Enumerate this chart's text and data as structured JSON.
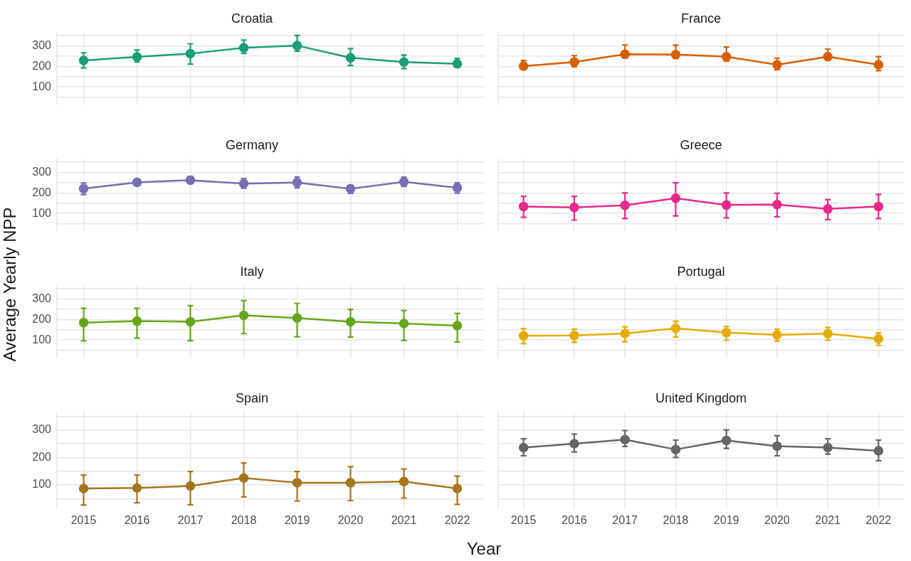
{
  "chart_data": [
    {
      "type": "line",
      "title": "Croatia",
      "categories": [
        "2015",
        "2016",
        "2017",
        "2018",
        "2019",
        "2020",
        "2021",
        "2022"
      ],
      "series": [
        {
          "color": "#1b9e77",
          "values": [
            229,
            246,
            262,
            290,
            301,
            242,
            221,
            212
          ],
          "errors": [
            [
              192,
              266
            ],
            [
              221,
              279
            ],
            [
              211,
              310
            ],
            [
              263,
              328
            ],
            [
              274,
              350
            ],
            [
              204,
              286
            ],
            [
              189,
              255
            ],
            [
              195,
              239
            ]
          ]
        }
      ],
      "ylim": [
        15,
        365
      ],
      "yticks": [
        {
          "value": 50,
          "label": null
        },
        100,
        {
          "value": 150,
          "label": null
        },
        200,
        {
          "value": 250,
          "label": null
        },
        300,
        {
          "value": 350,
          "label": null
        }
      ],
      "grid": true,
      "marker": "circle",
      "line_style": "solid",
      "tick_labels": "y"
    },
    {
      "type": "line",
      "title": "France",
      "categories": [
        "2015",
        "2016",
        "2017",
        "2018",
        "2019",
        "2020",
        "2021",
        "2022"
      ],
      "series": [
        {
          "color": "#d95f02",
          "values": [
            201,
            221,
            259,
            257,
            247,
            208,
            247,
            208
          ],
          "errors": [
            [
              190,
              228
            ],
            [
              198,
              252
            ],
            [
              240,
              304
            ],
            [
              239,
              303
            ],
            [
              226,
              294
            ],
            [
              183,
              240
            ],
            [
              230,
              284
            ],
            [
              179,
              247
            ]
          ]
        }
      ],
      "ylim": [
        15,
        365
      ],
      "yticks": [
        {
          "value": 50,
          "label": null
        },
        100,
        {
          "value": 150,
          "label": null
        },
        200,
        {
          "value": 250,
          "label": null
        },
        300,
        {
          "value": 350,
          "label": null
        }
      ],
      "grid": true,
      "marker": "circle",
      "line_style": "solid",
      "tick_labels": false
    },
    {
      "type": "line",
      "title": "Germany",
      "categories": [
        "2015",
        "2016",
        "2017",
        "2018",
        "2019",
        "2020",
        "2021",
        "2022"
      ],
      "series": [
        {
          "color": "#7570b3",
          "values": [
            221,
            251,
            262,
            245,
            250,
            220,
            254,
            225
          ],
          "errors": [
            [
              192,
              248
            ],
            [
              237,
              267
            ],
            [
              247,
              280
            ],
            [
              223,
              270
            ],
            [
              225,
              277
            ],
            [
              198,
              238
            ],
            [
              232,
              277
            ],
            [
              199,
              249
            ]
          ]
        }
      ],
      "ylim": [
        15,
        365
      ],
      "yticks": [
        {
          "value": 50,
          "label": null
        },
        100,
        {
          "value": 150,
          "label": null
        },
        200,
        {
          "value": 250,
          "label": null
        },
        300,
        {
          "value": 350,
          "label": null
        }
      ],
      "grid": true,
      "marker": "circle",
      "line_style": "solid",
      "tick_labels": "y"
    },
    {
      "type": "line",
      "title": "Greece",
      "categories": [
        "2015",
        "2016",
        "2017",
        "2018",
        "2019",
        "2020",
        "2021",
        "2022"
      ],
      "series": [
        {
          "color": "#e7298a",
          "values": [
            134,
            129,
            140,
            174,
            141,
            143,
            122,
            134
          ],
          "errors": [
            [
              81,
              183
            ],
            [
              68,
              183
            ],
            [
              75,
              200
            ],
            [
              88,
              249
            ],
            [
              79,
              200
            ],
            [
              84,
              198
            ],
            [
              70,
              167
            ],
            [
              75,
              193
            ]
          ]
        }
      ],
      "ylim": [
        15,
        365
      ],
      "yticks": [
        {
          "value": 50,
          "label": null
        },
        100,
        {
          "value": 150,
          "label": null
        },
        200,
        {
          "value": 250,
          "label": null
        },
        300,
        {
          "value": 350,
          "label": null
        }
      ],
      "grid": true,
      "marker": "circle",
      "line_style": "solid",
      "tick_labels": false
    },
    {
      "type": "line",
      "title": "Italy",
      "ylabel": "Average Yearly NPP",
      "categories": [
        "2015",
        "2016",
        "2017",
        "2018",
        "2019",
        "2020",
        "2021",
        "2022"
      ],
      "series": [
        {
          "color": "#66a61e",
          "values": [
            185,
            192,
            189,
            220,
            207,
            189,
            180,
            170
          ],
          "errors": [
            [
              96,
              254
            ],
            [
              110,
              254
            ],
            [
              97,
              267
            ],
            [
              131,
              292
            ],
            [
              116,
              278
            ],
            [
              114,
              249
            ],
            [
              98,
              244
            ],
            [
              91,
              229
            ]
          ]
        }
      ],
      "ylim": [
        15,
        365
      ],
      "yticks": [
        {
          "value": 50,
          "label": null
        },
        100,
        {
          "value": 150,
          "label": null
        },
        200,
        {
          "value": 250,
          "label": null
        },
        300,
        {
          "value": 350,
          "label": null
        }
      ],
      "grid": true,
      "marker": "circle",
      "line_style": "solid",
      "tick_labels": "y"
    },
    {
      "type": "line",
      "title": "Portugal",
      "categories": [
        "2015",
        "2016",
        "2017",
        "2018",
        "2019",
        "2020",
        "2021",
        "2022"
      ],
      "series": [
        {
          "color": "#e6ab02",
          "values": [
            121,
            122,
            132,
            157,
            136,
            125,
            131,
            106
          ],
          "errors": [
            [
              82,
              156
            ],
            [
              89,
              153
            ],
            [
              92,
              164
            ],
            [
              114,
              191
            ],
            [
              99,
              166
            ],
            [
              94,
              153
            ],
            [
              99,
              161
            ],
            [
              74,
              135
            ]
          ]
        }
      ],
      "ylim": [
        15,
        365
      ],
      "yticks": [
        {
          "value": 50,
          "label": null
        },
        100,
        {
          "value": 150,
          "label": null
        },
        200,
        {
          "value": 250,
          "label": null
        },
        300,
        {
          "value": 350,
          "label": null
        }
      ],
      "grid": true,
      "marker": "circle",
      "line_style": "solid",
      "tick_labels": false
    },
    {
      "type": "line",
      "title": "Spain",
      "xlabel": "Year",
      "categories": [
        "2015",
        "2016",
        "2017",
        "2018",
        "2019",
        "2020",
        "2021",
        "2022"
      ],
      "series": [
        {
          "color": "#a6761d",
          "values": [
            87,
            89,
            96,
            125,
            108,
            108,
            112,
            87
          ],
          "errors": [
            [
              27,
              136
            ],
            [
              35,
              136
            ],
            [
              28,
              149
            ],
            [
              56,
              180
            ],
            [
              41,
              149
            ],
            [
              43,
              166
            ],
            [
              52,
              158
            ],
            [
              29,
              132
            ]
          ]
        }
      ],
      "ylim": [
        15,
        365
      ],
      "yticks": [
        {
          "value": 50,
          "label": null
        },
        100,
        {
          "value": 150,
          "label": null
        },
        200,
        {
          "value": 250,
          "label": null
        },
        300,
        {
          "value": 350,
          "label": null
        }
      ],
      "grid": true,
      "marker": "circle",
      "line_style": "solid"
    },
    {
      "type": "line",
      "title": "United Kingdom",
      "categories": [
        "2015",
        "2016",
        "2017",
        "2018",
        "2019",
        "2020",
        "2021",
        "2022"
      ],
      "series": [
        {
          "color": "#666666",
          "values": [
            236,
            250,
            265,
            229,
            262,
            241,
            236,
            224
          ],
          "errors": [
            [
              206,
              268
            ],
            [
              220,
              285
            ],
            [
              240,
              298
            ],
            [
              200,
              263
            ],
            [
              233,
              300
            ],
            [
              206,
              279
            ],
            [
              212,
              268
            ],
            [
              188,
              263
            ]
          ]
        }
      ],
      "ylim": [
        15,
        365
      ],
      "yticks": [
        {
          "value": 50,
          "label": null
        },
        100,
        {
          "value": 150,
          "label": null
        },
        200,
        {
          "value": 250,
          "label": null
        },
        300,
        {
          "value": 350,
          "label": null
        }
      ],
      "grid": true,
      "marker": "circle",
      "line_style": "solid",
      "tick_labels": "x"
    }
  ]
}
